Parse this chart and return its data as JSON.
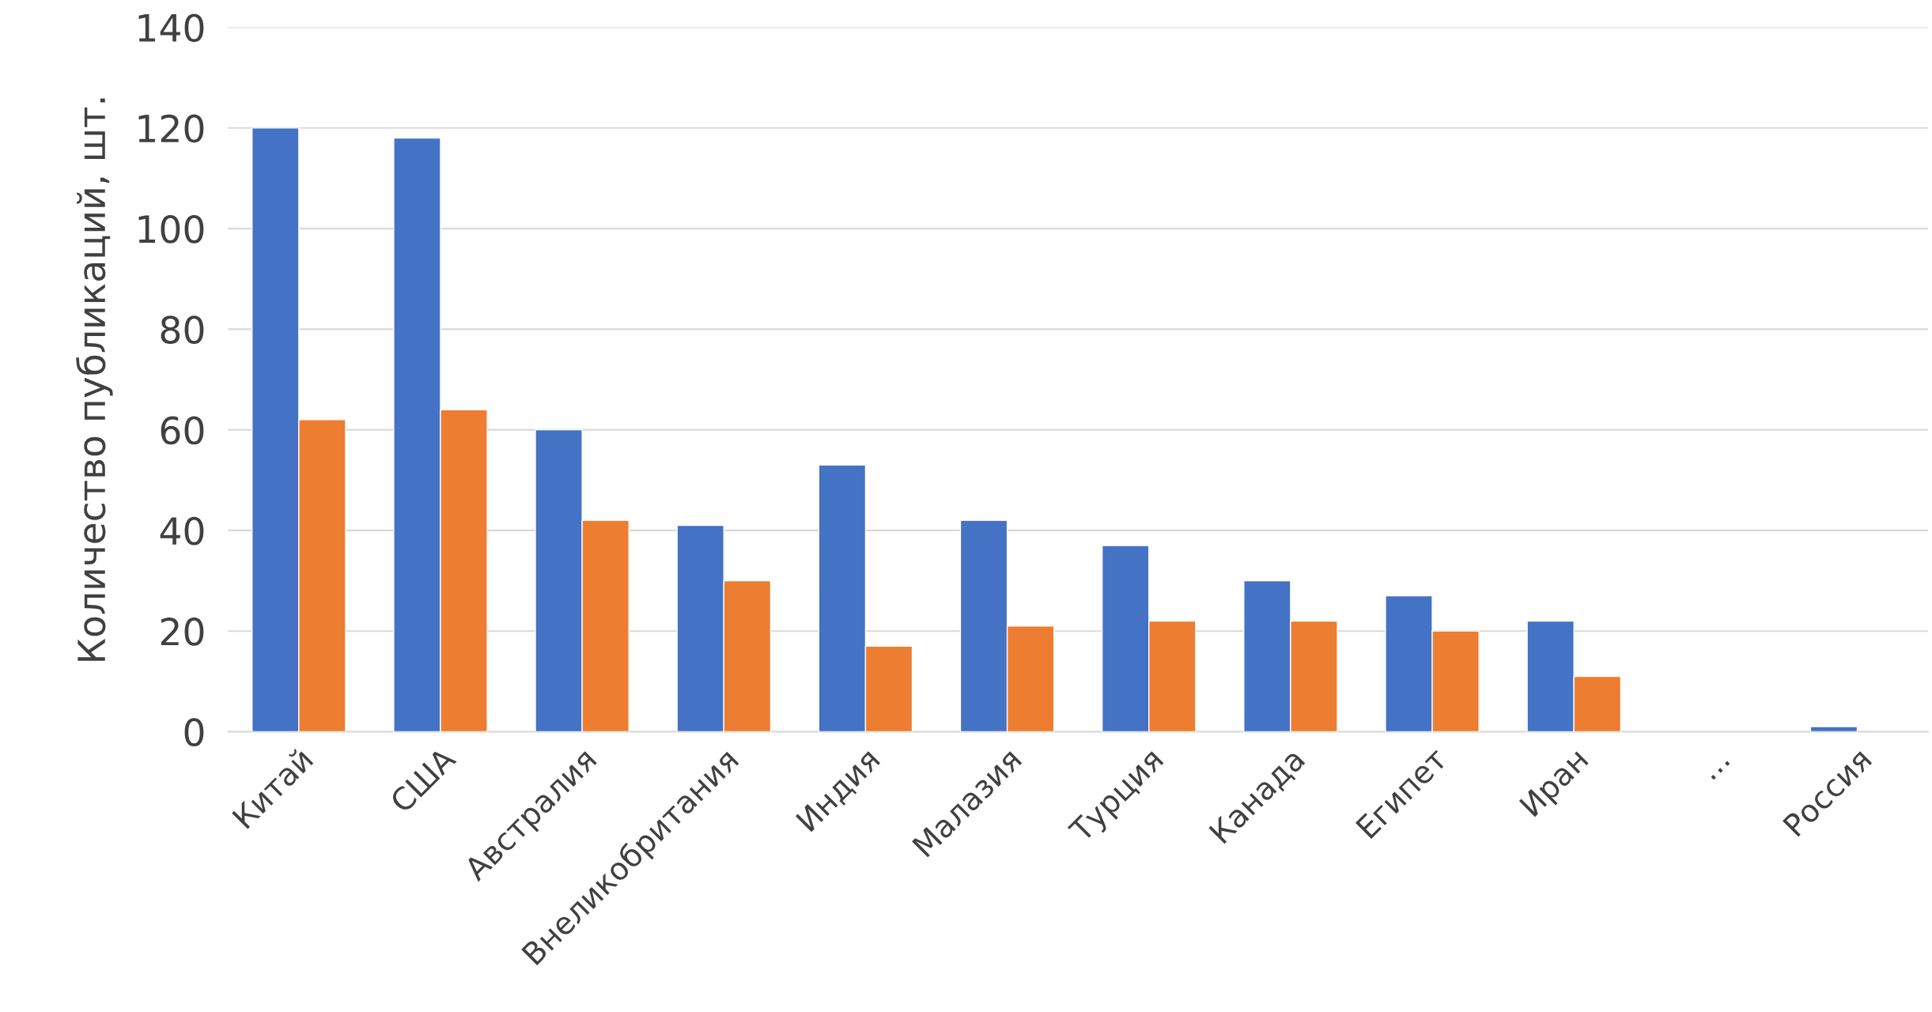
{
  "chart_data": {
    "type": "bar",
    "ylabel": "Количество публикаций, шт.",
    "categories": [
      "Китай",
      "США",
      "Австралия",
      "Внеликобритания",
      "Индия",
      "Малазия",
      "Турция",
      "Канада",
      "Египет",
      "Иран",
      "...",
      "Россия"
    ],
    "series": [
      {
        "color": "#4472c4",
        "values": [
          120,
          118,
          60,
          41,
          53,
          42,
          37,
          30,
          27,
          22,
          null,
          1
        ]
      },
      {
        "color": "#ed7d31",
        "values": [
          62,
          64,
          42,
          30,
          17,
          21,
          22,
          22,
          20,
          11,
          null,
          null
        ]
      }
    ],
    "ylim": [
      0,
      140
    ],
    "yticks": [
      0,
      20,
      40,
      60,
      80,
      100,
      120,
      140
    ],
    "grid": "y"
  }
}
